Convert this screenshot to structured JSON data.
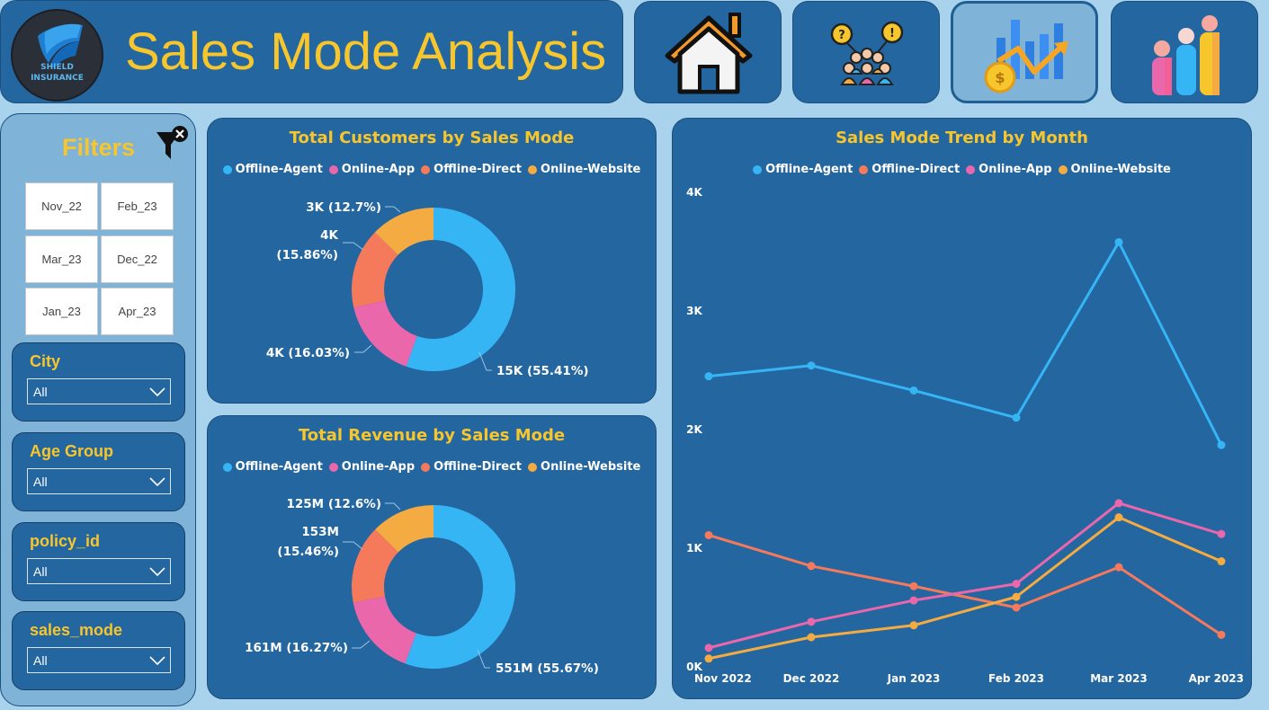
{
  "header": {
    "title": "Sales Mode Analysis",
    "logo_text_line1": "SHIELD",
    "logo_text_line2": "INSURANCE"
  },
  "nav": [
    {
      "name": "home",
      "icon": "home-icon"
    },
    {
      "name": "customer-insights",
      "icon": "people-question-icon"
    },
    {
      "name": "sales-mode-analysis",
      "icon": "revenue-growth-icon",
      "active": true
    },
    {
      "name": "demographics",
      "icon": "people-bars-icon"
    }
  ],
  "filters": {
    "title": "Filters",
    "months": [
      "Nov_22",
      "Feb_23",
      "Mar_23",
      "Dec_22",
      "Jan_23",
      "Apr_23"
    ],
    "slicers": [
      {
        "label": "City",
        "value": "All"
      },
      {
        "label": "Age Group",
        "value": "All"
      },
      {
        "label": "policy_id",
        "value": "All"
      },
      {
        "label": "sales_mode",
        "value": "All"
      }
    ]
  },
  "colors": {
    "Offline-Agent": "#36b5f5",
    "Online-App": "#ea67ab",
    "Offline-Direct": "#f47a5b",
    "Online-Website": "#f3ab42",
    "title": "#f7c62c",
    "panel": "#2466a0"
  },
  "chart_data": [
    {
      "type": "pie",
      "donut": true,
      "title": "Total Customers by Sales Mode",
      "legend": [
        "Offline-Agent",
        "Online-App",
        "Offline-Direct",
        "Online-Website"
      ],
      "slices": [
        {
          "name": "Offline-Agent",
          "value": 55.41,
          "label": "15K (55.41%)"
        },
        {
          "name": "Online-App",
          "value": 16.03,
          "label": "4K (16.03%)"
        },
        {
          "name": "Offline-Direct",
          "value": 15.86,
          "label_lines": [
            "4K",
            "(15.86%)"
          ]
        },
        {
          "name": "Online-Website",
          "value": 12.7,
          "label": "3K (12.7%)"
        }
      ]
    },
    {
      "type": "pie",
      "donut": true,
      "title": "Total Revenue by Sales Mode",
      "legend": [
        "Offline-Agent",
        "Online-App",
        "Offline-Direct",
        "Online-Website"
      ],
      "slices": [
        {
          "name": "Offline-Agent",
          "value": 55.67,
          "label": "551M (55.67%)"
        },
        {
          "name": "Online-App",
          "value": 16.27,
          "label": "161M (16.27%)"
        },
        {
          "name": "Offline-Direct",
          "value": 15.46,
          "label_lines": [
            "153M",
            "(15.46%)"
          ]
        },
        {
          "name": "Online-Website",
          "value": 12.6,
          "label": "125M (12.6%)"
        }
      ]
    },
    {
      "type": "line",
      "title": "Sales Mode Trend by Month",
      "legend": [
        "Offline-Agent",
        "Offline-Direct",
        "Online-App",
        "Online-Website"
      ],
      "categories": [
        "Nov 2022",
        "Dec 2022",
        "Jan 2023",
        "Feb 2023",
        "Mar 2023",
        "Apr 2023"
      ],
      "yticks": [
        "0K",
        "1K",
        "2K",
        "3K",
        "4K"
      ],
      "ylim": [
        0,
        4000
      ],
      "grid": false,
      "series": [
        {
          "name": "Offline-Agent",
          "values": [
            2450,
            2540,
            2330,
            2100,
            3580,
            1870
          ]
        },
        {
          "name": "Offline-Direct",
          "values": [
            1110,
            850,
            680,
            500,
            840,
            270
          ]
        },
        {
          "name": "Online-App",
          "values": [
            160,
            380,
            560,
            700,
            1380,
            1120
          ]
        },
        {
          "name": "Online-Website",
          "values": [
            70,
            250,
            350,
            590,
            1260,
            890
          ]
        }
      ]
    }
  ]
}
